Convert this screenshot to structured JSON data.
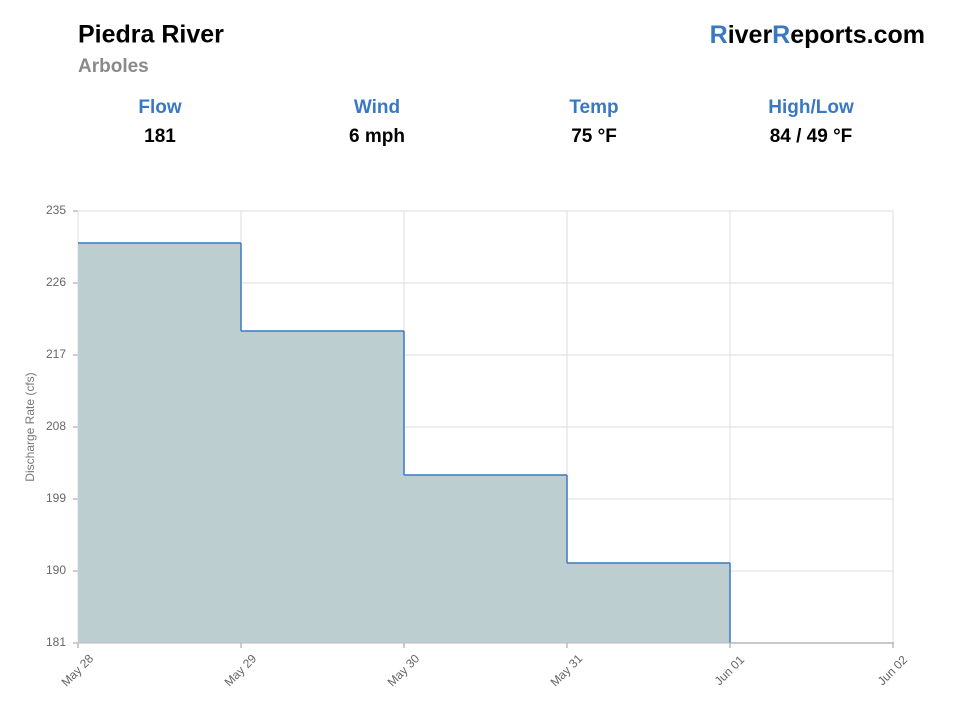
{
  "header": {
    "title": "Piedra River",
    "subtitle": "Arboles",
    "logo": [
      {
        "text": "R",
        "color": "#3a78c2"
      },
      {
        "text": "iver",
        "color": "#000000"
      },
      {
        "text": "R",
        "color": "#3a78c2"
      },
      {
        "text": "eports.com",
        "color": "#000000"
      }
    ]
  },
  "stats": [
    {
      "label": "Flow",
      "value": "181"
    },
    {
      "label": "Wind",
      "value": "6 mph"
    },
    {
      "label": "Temp",
      "value": "75 °F"
    },
    {
      "label": "High/Low",
      "value": "84 / 49 °F"
    }
  ],
  "chart_data": {
    "type": "step-area",
    "y_label": "Discharge Rate (cfs)",
    "categories": [
      "May 28",
      "May 29",
      "May 30",
      "May 31",
      "Jun 01",
      "Jun 02"
    ],
    "values": [
      231,
      220,
      202,
      191,
      181,
      181
    ],
    "color": "#3d78c0",
    "fill": "#b9cbcf",
    "ylim": [
      181,
      235
    ],
    "yticks": [
      181,
      190,
      199,
      208,
      217,
      226,
      235
    ],
    "grid": true
  }
}
